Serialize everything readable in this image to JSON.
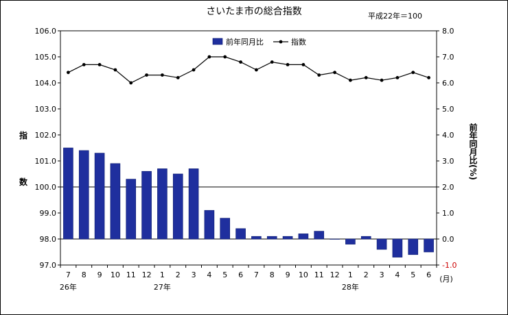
{
  "chart_data": {
    "type": "bar+line",
    "title": "さいたま市の総合指数",
    "note": "平成22年＝100",
    "ylabel_left": "指数",
    "ylabel_right": "前年同月比(%)",
    "month_unit": "(月)",
    "categories": [
      "7",
      "8",
      "9",
      "10",
      "11",
      "12",
      "1",
      "2",
      "3",
      "4",
      "5",
      "6",
      "7",
      "8",
      "9",
      "10",
      "11",
      "12",
      "1",
      "2",
      "3",
      "4",
      "5",
      "6"
    ],
    "year_labels": [
      {
        "label": "26年",
        "index": 0
      },
      {
        "label": "27年",
        "index": 6
      },
      {
        "label": "28年",
        "index": 18
      }
    ],
    "left_axis": {
      "min": 97.0,
      "max": 106.0,
      "ticks": [
        "97.0",
        "98.0",
        "99.0",
        "100.0",
        "101.0",
        "102.0",
        "103.0",
        "104.0",
        "105.0",
        "106.0"
      ]
    },
    "right_axis": {
      "min": -1.0,
      "max": 8.0,
      "ticks": [
        "-1.0",
        "0.0",
        "1.0",
        "2.0",
        "3.0",
        "4.0",
        "5.0",
        "6.0",
        "7.0",
        "8.0"
      ]
    },
    "reference_line": 100.0,
    "series": [
      {
        "name": "前年同月比",
        "type": "bar",
        "axis": "right",
        "color": "#1f2f9e",
        "values": [
          3.5,
          3.4,
          3.3,
          2.9,
          2.3,
          2.6,
          2.7,
          2.5,
          2.7,
          1.1,
          0.8,
          0.4,
          0.1,
          0.1,
          0.1,
          0.2,
          0.3,
          0.0,
          -0.2,
          0.1,
          -0.4,
          -0.7,
          -0.6,
          -0.5
        ]
      },
      {
        "name": "指数",
        "type": "line",
        "axis": "left",
        "color": "#000000",
        "values": [
          104.4,
          104.7,
          104.7,
          104.5,
          104.0,
          104.3,
          104.3,
          104.2,
          104.5,
          105.0,
          105.0,
          104.8,
          104.5,
          104.8,
          104.7,
          104.7,
          104.3,
          104.4,
          104.1,
          104.2,
          104.1,
          104.2,
          104.4,
          104.2
        ]
      }
    ],
    "legend_position": "top-center"
  }
}
